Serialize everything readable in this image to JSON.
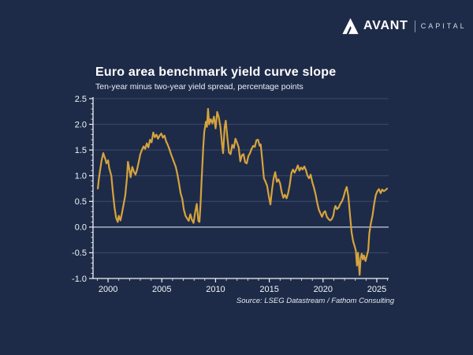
{
  "logo": {
    "brand": "AVANT",
    "suffix": "CAPITAL",
    "icon": "mountain-peaks-icon"
  },
  "chart_data": {
    "type": "line",
    "title": "Euro area benchmark yield curve slope",
    "subtitle": "Ten-year minus two-year yield spread, percentage points",
    "source": "Source: LSEG Datastream / Fathom Consulting",
    "xlabel": "",
    "ylabel": "",
    "x_range": [
      1998.6,
      2026.1
    ],
    "y_range": [
      -1.0,
      2.5
    ],
    "y_ticks": [
      2.5,
      2.0,
      1.5,
      1.0,
      0.5,
      0.0,
      -0.5,
      -1.0
    ],
    "y_tick_labels": [
      "2.5",
      "2.0",
      "1.5",
      "1.0",
      "0.5",
      "0.0",
      "-0.5",
      "-1.0"
    ],
    "y_minor_step": 0.1,
    "x_ticks_major": [
      2000,
      2005,
      2010,
      2015,
      2020,
      2025
    ],
    "x_ticks_minor_range": [
      1999,
      2026
    ],
    "grid": "horizontal",
    "legend": "none",
    "colors": {
      "background": "#1e2b48",
      "gridline": "#3b4b6e",
      "zero_line": "#c5d0e0",
      "axis": "#eef2f7",
      "line": "#d6a33e",
      "tick_text": "#f2f5fa"
    },
    "series": [
      {
        "name": "Ten-year minus two-year yield spread",
        "color": "#d6a33e",
        "points": [
          [
            1999.05,
            0.75
          ],
          [
            1999.15,
            0.95
          ],
          [
            1999.25,
            1.1
          ],
          [
            1999.4,
            1.3
          ],
          [
            1999.55,
            1.44
          ],
          [
            1999.65,
            1.38
          ],
          [
            1999.75,
            1.32
          ],
          [
            1999.85,
            1.24
          ],
          [
            2000.0,
            1.3
          ],
          [
            2000.1,
            1.15
          ],
          [
            2000.2,
            1.08
          ],
          [
            2000.3,
            1.0
          ],
          [
            2000.45,
            0.68
          ],
          [
            2000.6,
            0.38
          ],
          [
            2000.75,
            0.18
          ],
          [
            2000.9,
            0.1
          ],
          [
            2001.0,
            0.22
          ],
          [
            2001.15,
            0.13
          ],
          [
            2001.3,
            0.28
          ],
          [
            2001.45,
            0.45
          ],
          [
            2001.6,
            0.62
          ],
          [
            2001.75,
            0.95
          ],
          [
            2001.85,
            1.27
          ],
          [
            2002.0,
            1.1
          ],
          [
            2002.1,
            0.97
          ],
          [
            2002.25,
            1.17
          ],
          [
            2002.4,
            1.08
          ],
          [
            2002.55,
            1.02
          ],
          [
            2002.7,
            1.12
          ],
          [
            2002.85,
            1.27
          ],
          [
            2003.0,
            1.42
          ],
          [
            2003.15,
            1.5
          ],
          [
            2003.3,
            1.57
          ],
          [
            2003.45,
            1.52
          ],
          [
            2003.6,
            1.63
          ],
          [
            2003.75,
            1.55
          ],
          [
            2003.9,
            1.7
          ],
          [
            2004.05,
            1.65
          ],
          [
            2004.2,
            1.84
          ],
          [
            2004.35,
            1.75
          ],
          [
            2004.5,
            1.8
          ],
          [
            2004.65,
            1.72
          ],
          [
            2004.8,
            1.78
          ],
          [
            2004.95,
            1.82
          ],
          [
            2005.1,
            1.74
          ],
          [
            2005.25,
            1.78
          ],
          [
            2005.4,
            1.67
          ],
          [
            2005.55,
            1.6
          ],
          [
            2005.7,
            1.52
          ],
          [
            2005.85,
            1.42
          ],
          [
            2006.0,
            1.34
          ],
          [
            2006.15,
            1.25
          ],
          [
            2006.3,
            1.17
          ],
          [
            2006.45,
            1.03
          ],
          [
            2006.6,
            0.85
          ],
          [
            2006.75,
            0.66
          ],
          [
            2006.9,
            0.55
          ],
          [
            2007.05,
            0.34
          ],
          [
            2007.2,
            0.22
          ],
          [
            2007.35,
            0.17
          ],
          [
            2007.5,
            0.12
          ],
          [
            2007.65,
            0.25
          ],
          [
            2007.8,
            0.14
          ],
          [
            2007.95,
            0.08
          ],
          [
            2008.1,
            0.28
          ],
          [
            2008.25,
            0.45
          ],
          [
            2008.4,
            0.12
          ],
          [
            2008.5,
            0.1
          ],
          [
            2008.6,
            0.45
          ],
          [
            2008.7,
            0.9
          ],
          [
            2008.85,
            1.55
          ],
          [
            2008.95,
            1.85
          ],
          [
            2009.1,
            2.05
          ],
          [
            2009.2,
            1.95
          ],
          [
            2009.3,
            2.3
          ],
          [
            2009.4,
            2.0
          ],
          [
            2009.55,
            2.1
          ],
          [
            2009.7,
            2.02
          ],
          [
            2009.85,
            2.15
          ],
          [
            2010.0,
            1.92
          ],
          [
            2010.15,
            2.24
          ],
          [
            2010.3,
            2.14
          ],
          [
            2010.45,
            1.95
          ],
          [
            2010.6,
            1.62
          ],
          [
            2010.7,
            1.44
          ],
          [
            2010.85,
            1.95
          ],
          [
            2010.95,
            2.07
          ],
          [
            2011.1,
            1.73
          ],
          [
            2011.25,
            1.45
          ],
          [
            2011.4,
            1.42
          ],
          [
            2011.55,
            1.6
          ],
          [
            2011.7,
            1.54
          ],
          [
            2011.85,
            1.72
          ],
          [
            2012.0,
            1.64
          ],
          [
            2012.15,
            1.55
          ],
          [
            2012.3,
            1.28
          ],
          [
            2012.45,
            1.4
          ],
          [
            2012.6,
            1.42
          ],
          [
            2012.75,
            1.26
          ],
          [
            2012.9,
            1.24
          ],
          [
            2013.05,
            1.38
          ],
          [
            2013.2,
            1.44
          ],
          [
            2013.35,
            1.52
          ],
          [
            2013.5,
            1.58
          ],
          [
            2013.65,
            1.56
          ],
          [
            2013.8,
            1.69
          ],
          [
            2013.95,
            1.7
          ],
          [
            2014.1,
            1.58
          ],
          [
            2014.2,
            1.61
          ],
          [
            2014.35,
            1.28
          ],
          [
            2014.5,
            0.95
          ],
          [
            2014.65,
            0.88
          ],
          [
            2014.8,
            0.8
          ],
          [
            2014.95,
            0.6
          ],
          [
            2015.1,
            0.44
          ],
          [
            2015.25,
            0.72
          ],
          [
            2015.4,
            0.95
          ],
          [
            2015.55,
            1.07
          ],
          [
            2015.7,
            0.88
          ],
          [
            2015.85,
            0.93
          ],
          [
            2016.0,
            0.85
          ],
          [
            2016.15,
            0.68
          ],
          [
            2016.3,
            0.57
          ],
          [
            2016.45,
            0.63
          ],
          [
            2016.6,
            0.56
          ],
          [
            2016.75,
            0.66
          ],
          [
            2016.9,
            0.82
          ],
          [
            2017.05,
            1.05
          ],
          [
            2017.2,
            1.12
          ],
          [
            2017.35,
            1.06
          ],
          [
            2017.5,
            1.12
          ],
          [
            2017.65,
            1.2
          ],
          [
            2017.8,
            1.1
          ],
          [
            2017.95,
            1.16
          ],
          [
            2018.1,
            1.12
          ],
          [
            2018.25,
            1.18
          ],
          [
            2018.4,
            1.11
          ],
          [
            2018.55,
            1.0
          ],
          [
            2018.7,
            0.95
          ],
          [
            2018.85,
            1.02
          ],
          [
            2019.0,
            0.87
          ],
          [
            2019.15,
            0.77
          ],
          [
            2019.3,
            0.64
          ],
          [
            2019.45,
            0.48
          ],
          [
            2019.6,
            0.34
          ],
          [
            2019.75,
            0.27
          ],
          [
            2019.9,
            0.2
          ],
          [
            2020.05,
            0.28
          ],
          [
            2020.2,
            0.31
          ],
          [
            2020.35,
            0.2
          ],
          [
            2020.5,
            0.16
          ],
          [
            2020.65,
            0.13
          ],
          [
            2020.8,
            0.15
          ],
          [
            2020.95,
            0.22
          ],
          [
            2021.05,
            0.34
          ],
          [
            2021.15,
            0.41
          ],
          [
            2021.3,
            0.35
          ],
          [
            2021.45,
            0.38
          ],
          [
            2021.6,
            0.45
          ],
          [
            2021.75,
            0.5
          ],
          [
            2021.9,
            0.58
          ],
          [
            2022.05,
            0.7
          ],
          [
            2022.2,
            0.78
          ],
          [
            2022.35,
            0.6
          ],
          [
            2022.5,
            0.25
          ],
          [
            2022.65,
            -0.1
          ],
          [
            2022.8,
            -0.28
          ],
          [
            2022.95,
            -0.38
          ],
          [
            2023.05,
            -0.46
          ],
          [
            2023.15,
            -0.75
          ],
          [
            2023.25,
            -0.5
          ],
          [
            2023.4,
            -0.93
          ],
          [
            2023.5,
            -0.6
          ],
          [
            2023.6,
            -0.52
          ],
          [
            2023.7,
            -0.63
          ],
          [
            2023.8,
            -0.55
          ],
          [
            2023.95,
            -0.66
          ],
          [
            2024.05,
            -0.58
          ],
          [
            2024.2,
            -0.45
          ],
          [
            2024.3,
            -0.12
          ],
          [
            2024.45,
            0.08
          ],
          [
            2024.6,
            0.22
          ],
          [
            2024.75,
            0.45
          ],
          [
            2024.9,
            0.62
          ],
          [
            2025.05,
            0.7
          ],
          [
            2025.2,
            0.74
          ],
          [
            2025.35,
            0.66
          ],
          [
            2025.5,
            0.73
          ],
          [
            2025.65,
            0.7
          ],
          [
            2025.8,
            0.72
          ],
          [
            2025.95,
            0.75
          ]
        ]
      }
    ]
  }
}
